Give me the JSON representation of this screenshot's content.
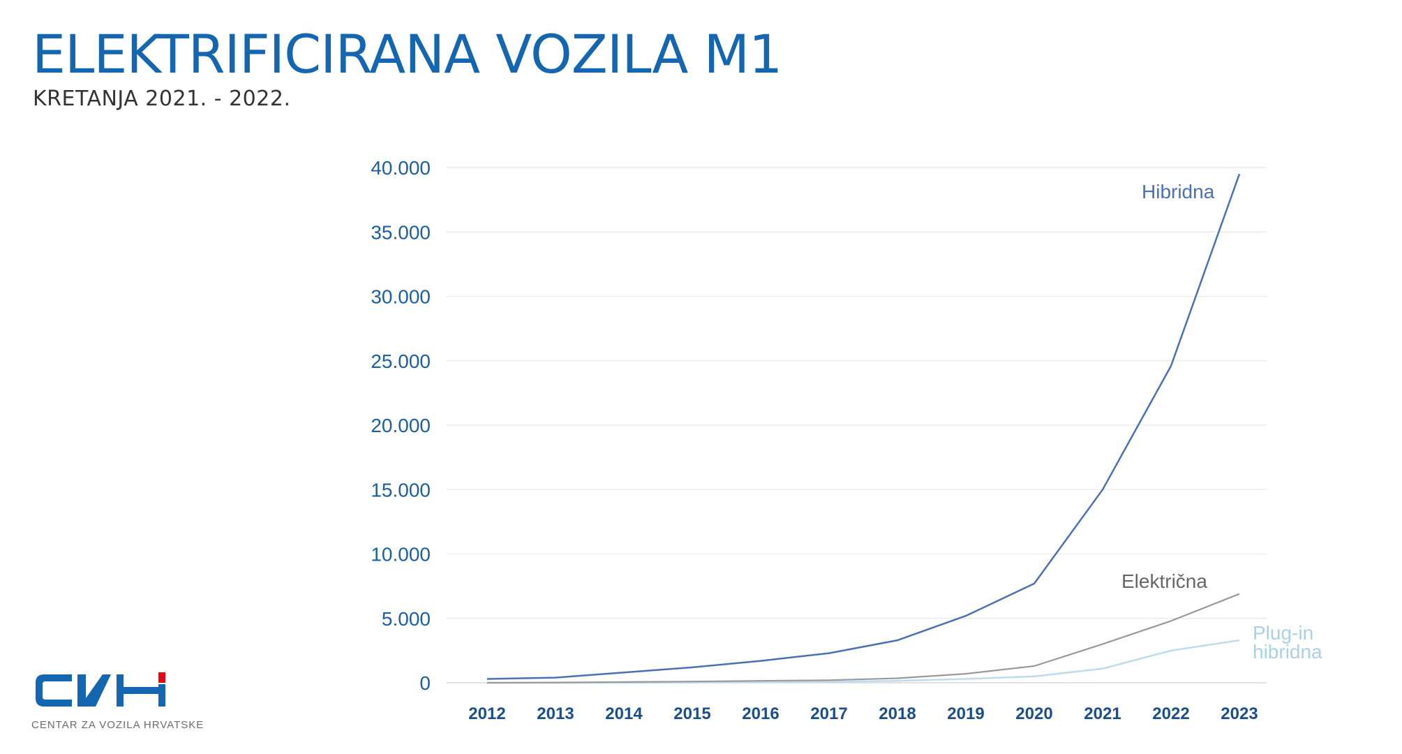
{
  "header": {
    "title": "ELEKTRIFICIRANA VOZILA M1",
    "subtitle": "KRETANJA 2021. - 2022."
  },
  "logo": {
    "caption": "CENTAR ZA VOZILA HRVATSKE",
    "text": "CVH",
    "colors": {
      "primary": "#1566b0",
      "accent": "#e30613"
    }
  },
  "chart_data": {
    "type": "line",
    "x": [
      "2012",
      "2013",
      "2014",
      "2015",
      "2016",
      "2017",
      "2018",
      "2019",
      "2020",
      "2021",
      "2022",
      "2023"
    ],
    "y_ticks": [
      "0",
      "5.000",
      "10.000",
      "15.000",
      "20.000",
      "25.000",
      "30.000",
      "35.000",
      "40.000"
    ],
    "ylim": [
      0,
      40000
    ],
    "grid": true,
    "series": [
      {
        "name": "Hibridna",
        "color": "#4a6fb5",
        "values": [
          300,
          400,
          800,
          1200,
          1700,
          2300,
          3300,
          5200,
          7700,
          15000,
          24600,
          39500
        ]
      },
      {
        "name": "Električna",
        "color": "#999999",
        "values": [
          0,
          20,
          60,
          100,
          150,
          200,
          350,
          700,
          1300,
          3000,
          4800,
          6900
        ]
      },
      {
        "name": "Plug-in hibridna",
        "color": "#bfdcec",
        "values": [
          0,
          0,
          0,
          20,
          50,
          80,
          150,
          300,
          500,
          1100,
          2500,
          3300
        ]
      }
    ]
  }
}
